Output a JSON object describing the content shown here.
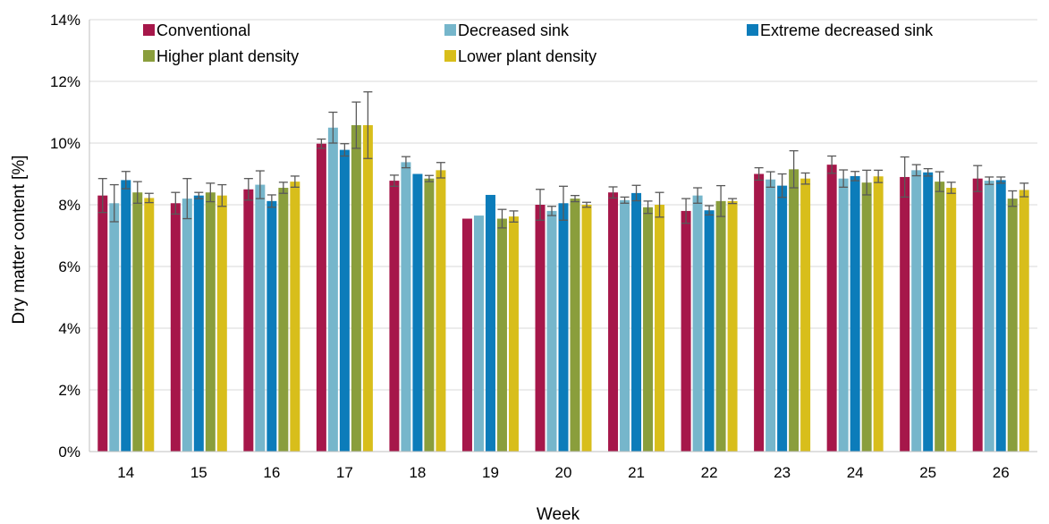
{
  "chart_data": {
    "type": "bar",
    "xlabel": "Week",
    "ylabel": "Dry matter content [%]",
    "ylim": [
      0,
      14
    ],
    "yticks": [
      "0%",
      "2%",
      "4%",
      "6%",
      "8%",
      "10%",
      "12%",
      "14%"
    ],
    "grid": "horizontal",
    "legend_position": "top",
    "categories": [
      "14",
      "15",
      "16",
      "17",
      "18",
      "19",
      "20",
      "21",
      "22",
      "23",
      "24",
      "25",
      "26"
    ],
    "series": [
      {
        "name": "Conventional",
        "color": "#A6174A",
        "values": [
          8.3,
          8.05,
          8.5,
          9.98,
          8.78,
          7.55,
          8.0,
          8.4,
          7.8,
          9.0,
          9.3,
          8.9,
          8.85
        ],
        "errors": [
          0.55,
          0.35,
          0.35,
          0.15,
          0.18,
          0.0,
          0.5,
          0.18,
          0.4,
          0.2,
          0.28,
          0.65,
          0.42
        ]
      },
      {
        "name": "Decreased sink",
        "color": "#76B6CB",
        "values": [
          8.05,
          8.2,
          8.65,
          10.5,
          9.38,
          7.65,
          7.8,
          8.15,
          8.3,
          8.82,
          8.85,
          9.12,
          8.78
        ],
        "errors": [
          0.6,
          0.65,
          0.45,
          0.5,
          0.18,
          0.0,
          0.15,
          0.1,
          0.25,
          0.25,
          0.28,
          0.18,
          0.12
        ]
      },
      {
        "name": "Extreme decreased sink",
        "color": "#0C7CBA",
        "values": [
          8.8,
          8.3,
          8.12,
          9.78,
          9.0,
          8.32,
          8.05,
          8.38,
          7.82,
          8.62,
          8.93,
          9.05,
          8.8
        ],
        "errors": [
          0.28,
          0.1,
          0.2,
          0.2,
          0.0,
          0.0,
          0.55,
          0.25,
          0.15,
          0.38,
          0.15,
          0.12,
          0.1
        ]
      },
      {
        "name": "Higher plant density",
        "color": "#8A9E3C",
        "values": [
          8.4,
          8.4,
          8.55,
          10.58,
          8.85,
          7.55,
          8.2,
          7.92,
          8.12,
          9.15,
          8.72,
          8.75,
          8.2
        ],
        "errors": [
          0.35,
          0.3,
          0.18,
          0.75,
          0.1,
          0.3,
          0.1,
          0.2,
          0.5,
          0.6,
          0.4,
          0.32,
          0.25
        ]
      },
      {
        "name": "Lower plant density",
        "color": "#D8BE1B",
        "values": [
          8.22,
          8.3,
          8.75,
          10.58,
          9.12,
          7.62,
          8.0,
          8.0,
          8.12,
          8.85,
          8.92,
          8.55,
          8.48
        ],
        "errors": [
          0.15,
          0.35,
          0.18,
          1.08,
          0.25,
          0.18,
          0.08,
          0.4,
          0.08,
          0.18,
          0.2,
          0.18,
          0.22
        ]
      }
    ]
  }
}
